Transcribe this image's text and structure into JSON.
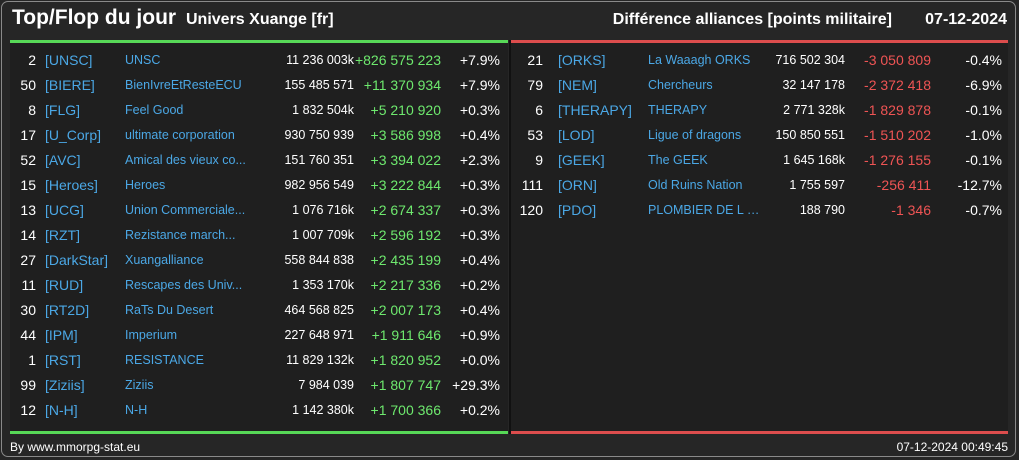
{
  "header": {
    "title": "Top/Flop du jour",
    "subtitle": "Univers Xuange [fr]",
    "metric": "Différence alliances [points militaire]",
    "date": "07-12-2024"
  },
  "colors": {
    "positive": "#6ee96e",
    "negative": "#ef5454",
    "link": "#4ba8e6",
    "top_bar": "#57d857",
    "flop_bar": "#dc4d4d"
  },
  "top": [
    {
      "rank": "2",
      "tag": "[UNSC]",
      "name": "UNSC",
      "points": "11 236 003k",
      "diff": "+826 575 223",
      "pct": "+7.9%"
    },
    {
      "rank": "50",
      "tag": "[BIERE]",
      "name": "BienIvreEtResteECU",
      "points": "155 485 571",
      "diff": "+11 370 934",
      "pct": "+7.9%"
    },
    {
      "rank": "8",
      "tag": "[FLG]",
      "name": "Feel Good",
      "points": "1 832 504k",
      "diff": "+5 210 920",
      "pct": "+0.3%"
    },
    {
      "rank": "17",
      "tag": "[U_Corp]",
      "name": "ultimate corporation",
      "points": "930 750 939",
      "diff": "+3 586 998",
      "pct": "+0.4%"
    },
    {
      "rank": "52",
      "tag": "[AVC]",
      "name": "Amical des vieux co...",
      "points": "151 760 351",
      "diff": "+3 394 022",
      "pct": "+2.3%"
    },
    {
      "rank": "15",
      "tag": "[Heroes]",
      "name": "Heroes",
      "points": "982 956 549",
      "diff": "+3 222 844",
      "pct": "+0.3%"
    },
    {
      "rank": "13",
      "tag": "[UCG]",
      "name": "Union Commerciale...",
      "points": "1 076 716k",
      "diff": "+2 674 337",
      "pct": "+0.3%"
    },
    {
      "rank": "14",
      "tag": "[RZT]",
      "name": "Rezistance march...",
      "points": "1 007 709k",
      "diff": "+2 596 192",
      "pct": "+0.3%"
    },
    {
      "rank": "27",
      "tag": "[DarkStar]",
      "name": "Xuangalliance",
      "points": "558 844 838",
      "diff": "+2 435 199",
      "pct": "+0.4%"
    },
    {
      "rank": "11",
      "tag": "[RUD]",
      "name": "Rescapes des Univ...",
      "points": "1 353 170k",
      "diff": "+2 217 336",
      "pct": "+0.2%"
    },
    {
      "rank": "30",
      "tag": "[RT2D]",
      "name": "RaTs Du Desert",
      "points": "464 568 825",
      "diff": "+2 007 173",
      "pct": "+0.4%"
    },
    {
      "rank": "44",
      "tag": "[IPM]",
      "name": "Imperium",
      "points": "227 648 971",
      "diff": "+1 911 646",
      "pct": "+0.9%"
    },
    {
      "rank": "1",
      "tag": "[RST]",
      "name": "RESISTANCE",
      "points": "11 829 132k",
      "diff": "+1 820 952",
      "pct": "+0.0%"
    },
    {
      "rank": "99",
      "tag": "[Ziziis]",
      "name": "Ziziis",
      "points": "7 984 039",
      "diff": "+1 807 747",
      "pct": "+29.3%"
    },
    {
      "rank": "12",
      "tag": "[N-H]",
      "name": "N-H",
      "points": "1 142 380k",
      "diff": "+1 700 366",
      "pct": "+0.2%"
    }
  ],
  "flop": [
    {
      "rank": "21",
      "tag": "[ORKS]",
      "name": "La Waaagh ORKS",
      "points": "716 502 304",
      "diff": "-3 050 809",
      "pct": "-0.4%"
    },
    {
      "rank": "79",
      "tag": "[NEM]",
      "name": "Chercheurs",
      "points": "32 147 178",
      "diff": "-2 372 418",
      "pct": "-6.9%"
    },
    {
      "rank": "6",
      "tag": "[THERAPY]",
      "name": "THERAPY",
      "points": "2 771 328k",
      "diff": "-1 829 878",
      "pct": "-0.1%"
    },
    {
      "rank": "53",
      "tag": "[LOD]",
      "name": "Ligue of dragons",
      "points": "150 850 551",
      "diff": "-1 510 202",
      "pct": "-1.0%"
    },
    {
      "rank": "9",
      "tag": "[GEEK]",
      "name": "The GEEK",
      "points": "1 645 168k",
      "diff": "-1 276 155",
      "pct": "-0.1%"
    },
    {
      "rank": "111",
      "tag": "[ORN]",
      "name": "Old Ruins Nation",
      "points": "1 755 597",
      "diff": "-256 411",
      "pct": "-12.7%"
    },
    {
      "rank": "120",
      "tag": "[PDO]",
      "name": "PLOMBIER DE L O...",
      "points": "188 790",
      "diff": "-1 346",
      "pct": "-0.7%"
    }
  ],
  "footer": {
    "source": "By www.mmorpg-stat.eu",
    "timestamp": "07-12-2024 00:49:45"
  }
}
